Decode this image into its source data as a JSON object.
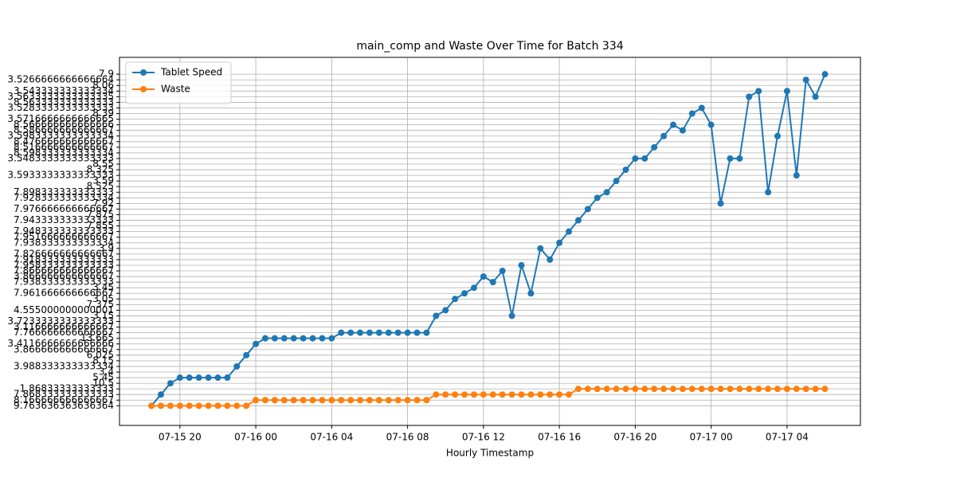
{
  "chart_data": {
    "type": "line",
    "title": "main_comp and Waste Over Time for Batch 334",
    "xlabel": "Hourly Timestamp",
    "legend": "upper left",
    "grid": true,
    "x": [
      "07-15 18:30",
      "07-15 19:00",
      "07-15 19:30",
      "07-15 20:00",
      "07-15 20:30",
      "07-15 21:00",
      "07-15 21:30",
      "07-15 22:00",
      "07-15 22:30",
      "07-15 23:00",
      "07-15 23:30",
      "07-16 00:00",
      "07-16 00:30",
      "07-16 01:00",
      "07-16 01:30",
      "07-16 02:00",
      "07-16 02:30",
      "07-16 03:00",
      "07-16 03:30",
      "07-16 04:00",
      "07-16 04:30",
      "07-16 05:00",
      "07-16 05:30",
      "07-16 06:00",
      "07-16 06:30",
      "07-16 07:00",
      "07-16 07:30",
      "07-16 08:00",
      "07-16 08:30",
      "07-16 09:00",
      "07-16 09:30",
      "07-16 10:00",
      "07-16 10:30",
      "07-16 11:00",
      "07-16 11:30",
      "07-16 12:00",
      "07-16 12:30",
      "07-16 13:00",
      "07-16 13:30",
      "07-16 14:00",
      "07-16 14:30",
      "07-16 15:00",
      "07-16 15:30",
      "07-16 16:00",
      "07-16 16:30",
      "07-16 17:00",
      "07-16 17:30",
      "07-16 18:00",
      "07-16 18:30",
      "07-16 19:00",
      "07-16 19:30",
      "07-16 20:00",
      "07-16 20:30",
      "07-16 21:00",
      "07-16 21:30",
      "07-16 22:00",
      "07-16 22:30",
      "07-16 23:00",
      "07-16 23:30",
      "07-17 00:00",
      "07-17 00:30",
      "07-17 01:00",
      "07-17 01:30",
      "07-17 02:00",
      "07-17 02:30",
      "07-17 03:00",
      "07-17 03:30",
      "07-17 04:00",
      "07-17 04:30",
      "07-17 05:00",
      "07-17 05:30",
      "07-17 06:00"
    ],
    "series": [
      {
        "name": "Tablet Speed",
        "color": "#1f77b4",
        "values": [
          0,
          2,
          4,
          5,
          5,
          5,
          5,
          5,
          5,
          7,
          9,
          11,
          12,
          12,
          12,
          12,
          12,
          12,
          12,
          12,
          13,
          13,
          13,
          13,
          13,
          13,
          13,
          13,
          13,
          13,
          16,
          17,
          19,
          20,
          21,
          23,
          22,
          24,
          16,
          25,
          20,
          28,
          26,
          29,
          31,
          33,
          35,
          37,
          38,
          40,
          42,
          44,
          44,
          46,
          48,
          50,
          49,
          52,
          53,
          50,
          36,
          44,
          44,
          55,
          56,
          38,
          48,
          56,
          41,
          58,
          55,
          59
        ]
      },
      {
        "name": "Waste",
        "color": "#ff7f0e",
        "values": [
          0,
          0,
          0,
          0,
          0,
          0,
          0,
          0,
          0,
          0,
          0,
          1,
          1,
          1,
          1,
          1,
          1,
          1,
          1,
          1,
          1,
          1,
          1,
          1,
          1,
          1,
          1,
          1,
          1,
          1,
          2,
          2,
          2,
          2,
          2,
          2,
          2,
          2,
          2,
          2,
          2,
          2,
          2,
          2,
          2,
          3,
          3,
          3,
          3,
          3,
          3,
          3,
          3,
          3,
          3,
          3,
          3,
          3,
          3,
          3,
          3,
          3,
          3,
          3,
          3,
          3,
          3,
          3,
          3,
          3,
          3,
          3
        ]
      }
    ],
    "xlim": [
      "07-15 16:49",
      "07-17 07:52"
    ],
    "xticks": [
      "07-15 20",
      "07-16 00",
      "07-16 04",
      "07-16 08",
      "07-16 12",
      "07-16 16",
      "07-16 20",
      "07-17 00",
      "07-17 04"
    ],
    "ylim": [
      -3.5,
      62
    ],
    "yticks": [
      {
        "value": 0,
        "label": "9.763636363636364"
      },
      {
        "value": 1,
        "label": "8.166666666666667"
      },
      {
        "value": 2,
        "label": "7.868333333333333"
      },
      {
        "value": 3,
        "label": "1.86833333333333"
      },
      {
        "value": 4,
        "label": "10.5"
      },
      {
        "value": 5,
        "label": "5.45"
      },
      {
        "value": 6,
        "label": "3.4"
      },
      {
        "value": 7,
        "label": "3.988333333333334"
      },
      {
        "value": 8,
        "label": "8.15"
      },
      {
        "value": 9,
        "label": "6.025"
      },
      {
        "value": 10,
        "label": "3.866666666666667"
      },
      {
        "value": 11,
        "label": "3.4116666666666666"
      },
      {
        "value": 12,
        "label": "13.665"
      },
      {
        "value": 13,
        "label": "7.766666666666667"
      },
      {
        "value": 14,
        "label": "3.116666666666667"
      },
      {
        "value": 15,
        "label": "3.7233333333333333"
      },
      {
        "value": 16,
        "label": "3.15"
      },
      {
        "value": 17,
        "label": "4.555000000000001"
      },
      {
        "value": 18,
        "label": "7.375"
      },
      {
        "value": 19,
        "label": "3.05"
      },
      {
        "value": 20,
        "label": "7.961666666666667"
      },
      {
        "value": 21,
        "label": "3.45"
      },
      {
        "value": 22,
        "label": "7.938333333333333"
      },
      {
        "value": 23,
        "label": "3.866666666666667"
      },
      {
        "value": 24,
        "label": "7.866666666666667"
      },
      {
        "value": 25,
        "label": "7.958333333333333"
      },
      {
        "value": 26,
        "label": "7.918333333333333"
      },
      {
        "value": 27,
        "label": "7.826666666666667"
      },
      {
        "value": 28,
        "label": "3.9"
      },
      {
        "value": 29,
        "label": "7.938333333333334"
      },
      {
        "value": 30,
        "label": "7.951666666666667"
      },
      {
        "value": 31,
        "label": "7.948333333333333"
      },
      {
        "value": 32,
        "label": "7.855"
      },
      {
        "value": 33,
        "label": "7.943333333333333"
      },
      {
        "value": 34,
        "label": "7.875"
      },
      {
        "value": 35,
        "label": "7.976666666666667"
      },
      {
        "value": 36,
        "label": "7.92"
      },
      {
        "value": 37,
        "label": "7.928333333333334"
      },
      {
        "value": 38,
        "label": "7.898333333333333"
      },
      {
        "value": 39,
        "label": "8.525"
      },
      {
        "value": 40,
        "label": "3.59"
      },
      {
        "value": 41,
        "label": "3.5933333333333333"
      },
      {
        "value": 42,
        "label": "8.325"
      },
      {
        "value": 43,
        "label": "8.55"
      },
      {
        "value": 44,
        "label": "3.5483333333333333"
      },
      {
        "value": 45,
        "label": "8.598333333333334"
      },
      {
        "value": 46,
        "label": "8.516666666666667"
      },
      {
        "value": 47,
        "label": "8.476666666666667"
      },
      {
        "value": 48,
        "label": "3.5983333333333334"
      },
      {
        "value": 49,
        "label": "8.586666666666667"
      },
      {
        "value": 50,
        "label": "8.566666666666666"
      },
      {
        "value": 51,
        "label": "3.5716666666666665"
      },
      {
        "value": 52,
        "label": "8.39"
      },
      {
        "value": 53,
        "label": "3.5283333333333333"
      },
      {
        "value": 54,
        "label": "8.563333333333333"
      },
      {
        "value": 55,
        "label": "3.5633333333333335"
      },
      {
        "value": 56,
        "label": "3.543333333333334"
      },
      {
        "value": 57,
        "label": "8.06"
      },
      {
        "value": 58,
        "label": "3.5266666666666664"
      },
      {
        "value": 59,
        "label": "7.9"
      }
    ]
  }
}
